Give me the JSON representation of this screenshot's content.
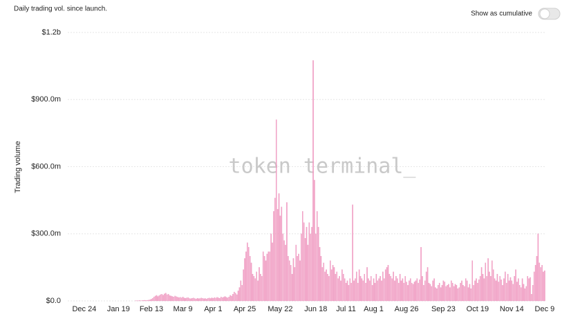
{
  "chart_data": {
    "type": "bar",
    "title": "Daily trading vol. since launch.",
    "y_label": "Trading volume",
    "color": "#f6a3c6",
    "stroke": "#e58ab8",
    "grid": true,
    "ylim": [
      0,
      1200000000
    ],
    "yticks": [
      {
        "value": 0,
        "label": "$0.0"
      },
      {
        "value": 300000000,
        "label": "$300.0m"
      },
      {
        "value": 600000000,
        "label": "$600.0m"
      },
      {
        "value": 900000000,
        "label": "$900.0m"
      },
      {
        "value": 1200000000,
        "label": "$1.2b"
      }
    ],
    "categories": [
      null,
      null,
      null,
      null,
      null,
      null,
      null,
      null,
      null,
      null,
      null,
      "Dec 24",
      null,
      null,
      null,
      null,
      null,
      null,
      null,
      null,
      null,
      null,
      null,
      null,
      null,
      null,
      null,
      null,
      null,
      null,
      null,
      null,
      null,
      null,
      null,
      null,
      null,
      "Jan 19",
      null,
      null,
      null,
      null,
      null,
      null,
      null,
      null,
      null,
      null,
      null,
      null,
      null,
      null,
      null,
      null,
      null,
      null,
      null,
      null,
      null,
      null,
      null,
      null,
      "Feb 13",
      null,
      null,
      null,
      null,
      null,
      null,
      null,
      null,
      null,
      null,
      null,
      null,
      null,
      null,
      null,
      null,
      null,
      null,
      null,
      null,
      null,
      null,
      null,
      "Mar 9",
      null,
      null,
      null,
      null,
      null,
      null,
      null,
      null,
      null,
      null,
      null,
      null,
      null,
      null,
      null,
      null,
      null,
      null,
      null,
      null,
      null,
      null,
      "Apr 1",
      null,
      null,
      null,
      null,
      null,
      null,
      null,
      null,
      null,
      null,
      null,
      null,
      null,
      null,
      null,
      null,
      null,
      null,
      null,
      null,
      null,
      null,
      null,
      "Apr 25",
      null,
      null,
      null,
      null,
      null,
      null,
      null,
      null,
      null,
      null,
      null,
      null,
      null,
      null,
      null,
      null,
      null,
      null,
      null,
      null,
      null,
      null,
      null,
      null,
      null,
      null,
      "May 22",
      null,
      null,
      null,
      null,
      null,
      null,
      null,
      null,
      null,
      null,
      null,
      null,
      null,
      null,
      null,
      null,
      null,
      null,
      null,
      null,
      null,
      null,
      null,
      null,
      null,
      null,
      "Jun 18",
      null,
      null,
      null,
      null,
      null,
      null,
      null,
      null,
      null,
      null,
      null,
      null,
      null,
      null,
      null,
      null,
      null,
      null,
      null,
      null,
      null,
      null,
      "Jul 11",
      null,
      null,
      null,
      null,
      null,
      null,
      null,
      null,
      null,
      null,
      null,
      null,
      null,
      null,
      null,
      null,
      null,
      null,
      null,
      null,
      "Aug 1",
      null,
      null,
      null,
      null,
      null,
      null,
      null,
      null,
      null,
      null,
      null,
      null,
      null,
      null,
      null,
      null,
      null,
      null,
      null,
      null,
      null,
      null,
      null,
      null,
      "Aug 26",
      null,
      null,
      null,
      null,
      null,
      null,
      null,
      null,
      null,
      null,
      null,
      null,
      null,
      null,
      null,
      null,
      null,
      null,
      null,
      null,
      null,
      null,
      null,
      null,
      null,
      null,
      null,
      "Sep 23",
      null,
      null,
      null,
      null,
      null,
      null,
      null,
      null,
      null,
      null,
      null,
      null,
      null,
      null,
      null,
      null,
      null,
      null,
      null,
      null,
      null,
      null,
      null,
      null,
      null,
      "Oct 19",
      null,
      null,
      null,
      null,
      null,
      null,
      null,
      null,
      null,
      null,
      null,
      null,
      null,
      null,
      null,
      null,
      null,
      null,
      null,
      null,
      null,
      null,
      null,
      null,
      null,
      "Nov 14",
      null,
      null,
      null,
      null,
      null,
      null,
      null,
      null,
      null,
      null,
      null,
      null,
      null,
      null,
      null,
      null,
      null,
      null,
      null,
      null,
      null,
      null,
      null,
      null,
      "Dec 9"
    ],
    "values": [
      0,
      0,
      0,
      0,
      0,
      0,
      0,
      0,
      0,
      0,
      0,
      0,
      0,
      0,
      0,
      0,
      0,
      0,
      0,
      0,
      0,
      0,
      0,
      0,
      0,
      0,
      0,
      0,
      0,
      0,
      0,
      0,
      0,
      0,
      0,
      0,
      0,
      0,
      0,
      0,
      0,
      0,
      0,
      0,
      0,
      0,
      0,
      0,
      0,
      0,
      1000000.0,
      1000000.0,
      1000000.0,
      2000000.0,
      1000000.0,
      2000000.0,
      2000000.0,
      3000000.0,
      2000000.0,
      3000000.0,
      4000000.0,
      5000000.0,
      8000000.0,
      12000000.0,
      18000000.0,
      22000000.0,
      25000000.0,
      20000000.0,
      24000000.0,
      28000000.0,
      30000000.0,
      26000000.0,
      32000000.0,
      35000000.0,
      28000000.0,
      30000000.0,
      24000000.0,
      22000000.0,
      20000000.0,
      18000000.0,
      22000000.0,
      19000000.0,
      17000000.0,
      15000000.0,
      16000000.0,
      14000000.0,
      18000000.0,
      13000000.0,
      12000000.0,
      14000000.0,
      15000000.0,
      11000000.0,
      10000000.0,
      12000000.0,
      13000000.0,
      11000000.0,
      9000000.0,
      12000000.0,
      10000000.0,
      11000000.0,
      13000000.0,
      12000000.0,
      10000000.0,
      11000000.0,
      9000000.0,
      12000000.0,
      13000000.0,
      11000000.0,
      14000000.0,
      12000000.0,
      15000000.0,
      13000000.0,
      16000000.0,
      14000000.0,
      12000000.0,
      18000000.0,
      15000000.0,
      17000000.0,
      20000000.0,
      16000000.0,
      14000000.0,
      18000000.0,
      25000000.0,
      22000000.0,
      30000000.0,
      40000000.0,
      35000000.0,
      28000000.0,
      45000000.0,
      60000000.0,
      90000000.0,
      70000000.0,
      140000000.0,
      190000000.0,
      220000000.0,
      260000000.0,
      240000000.0,
      200000000.0,
      170000000.0,
      120000000.0,
      110000000.0,
      100000000.0,
      130000000.0,
      90000000.0,
      150000000.0,
      120000000.0,
      110000000.0,
      220000000.0,
      200000000.0,
      180000000.0,
      210000000.0,
      220000000.0,
      220000000.0,
      300000000.0,
      260000000.0,
      400000000.0,
      460000000.0,
      810000000.0,
      410000000.0,
      480000000.0,
      380000000.0,
      420000000.0,
      300000000.0,
      270000000.0,
      250000000.0,
      440000000.0,
      200000000.0,
      180000000.0,
      160000000.0,
      120000000.0,
      190000000.0,
      150000000.0,
      250000000.0,
      200000000.0,
      210000000.0,
      180000000.0,
      300000000.0,
      400000000.0,
      350000000.0,
      280000000.0,
      330000000.0,
      250000000.0,
      350000000.0,
      300000000.0,
      330000000.0,
      1075000000.0,
      540000000.0,
      300000000.0,
      400000000.0,
      330000000.0,
      240000000.0,
      200000000.0,
      150000000.0,
      170000000.0,
      130000000.0,
      140000000.0,
      120000000.0,
      110000000.0,
      180000000.0,
      140000000.0,
      160000000.0,
      150000000.0,
      120000000.0,
      130000000.0,
      100000000.0,
      110000000.0,
      90000000.0,
      140000000.0,
      120000000.0,
      100000000.0,
      80000000.0,
      90000000.0,
      70000000.0,
      100000000.0,
      80000000.0,
      430000000.0,
      90000000.0,
      100000000.0,
      130000000.0,
      80000000.0,
      140000000.0,
      110000000.0,
      100000000.0,
      90000000.0,
      120000000.0,
      80000000.0,
      150000000.0,
      100000000.0,
      90000000.0,
      110000000.0,
      70000000.0,
      100000000.0,
      80000000.0,
      120000000.0,
      90000000.0,
      100000000.0,
      110000000.0,
      90000000.0,
      130000000.0,
      100000000.0,
      140000000.0,
      150000000.0,
      160000000.0,
      120000000.0,
      110000000.0,
      100000000.0,
      130000000.0,
      90000000.0,
      110000000.0,
      100000000.0,
      80000000.0,
      120000000.0,
      90000000.0,
      100000000.0,
      80000000.0,
      110000000.0,
      85000000.0,
      70000000.0,
      90000000.0,
      100000000.0,
      80000000.0,
      75000000.0,
      85000000.0,
      90000000.0,
      100000000.0,
      80000000.0,
      95000000.0,
      240000000.0,
      110000000.0,
      70000000.0,
      90000000.0,
      130000000.0,
      150000000.0,
      80000000.0,
      75000000.0,
      65000000.0,
      90000000.0,
      100000000.0,
      60000000.0,
      55000000.0,
      70000000.0,
      80000000.0,
      60000000.0,
      70000000.0,
      90000000.0,
      85000000.0,
      65000000.0,
      70000000.0,
      75000000.0,
      60000000.0,
      90000000.0,
      80000000.0,
      65000000.0,
      75000000.0,
      70000000.0,
      55000000.0,
      60000000.0,
      80000000.0,
      90000000.0,
      70000000.0,
      65000000.0,
      100000000.0,
      90000000.0,
      60000000.0,
      75000000.0,
      55000000.0,
      180000000.0,
      70000000.0,
      90000000.0,
      100000000.0,
      80000000.0,
      95000000.0,
      110000000.0,
      150000000.0,
      120000000.0,
      100000000.0,
      170000000.0,
      110000000.0,
      190000000.0,
      130000000.0,
      110000000.0,
      180000000.0,
      140000000.0,
      100000000.0,
      90000000.0,
      120000000.0,
      85000000.0,
      110000000.0,
      95000000.0,
      70000000.0,
      100000000.0,
      130000000.0,
      80000000.0,
      120000000.0,
      90000000.0,
      105000000.0,
      90000000.0,
      75000000.0,
      110000000.0,
      140000000.0,
      85000000.0,
      100000000.0,
      70000000.0,
      60000000.0,
      100000000.0,
      75000000.0,
      55000000.0,
      65000000.0,
      110000000.0,
      100000000.0,
      105000000.0,
      30000000.0,
      70000000.0,
      130000000.0,
      160000000.0,
      200000000.0,
      300000000.0,
      170000000.0,
      150000000.0,
      160000000.0,
      130000000.0,
      135000000.0
    ]
  },
  "controls": {
    "cumulative_toggle": "Show as cumulative"
  },
  "watermark": "token terminal_"
}
